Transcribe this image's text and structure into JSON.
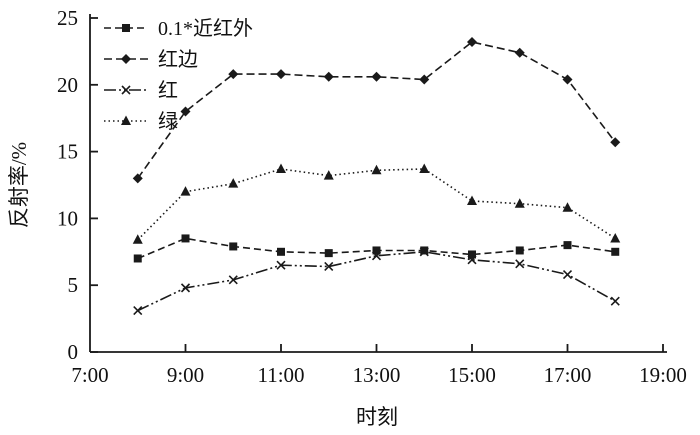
{
  "chart_data": {
    "type": "line",
    "title": "",
    "xlabel": "时刻",
    "ylabel": "反射率/%",
    "xlim_hours": [
      7,
      19
    ],
    "ylim": [
      0,
      25
    ],
    "x_tick_hours": [
      7,
      9,
      11,
      13,
      15,
      17,
      19
    ],
    "x_tick_labels": [
      "7:00",
      "9:00",
      "11:00",
      "13:00",
      "15:00",
      "17:00",
      "19:00"
    ],
    "y_ticks": [
      0,
      5,
      10,
      15,
      20,
      25
    ],
    "x_hours": [
      8,
      9,
      10,
      11,
      12,
      13,
      14,
      15,
      16,
      17,
      18
    ],
    "series": [
      {
        "key": "nir",
        "name": "0.1*近红外",
        "marker": "square",
        "dash": "7 4",
        "values": [
          7.0,
          8.5,
          7.9,
          7.5,
          7.4,
          7.6,
          7.6,
          7.3,
          7.6,
          8.0,
          7.5
        ]
      },
      {
        "key": "red-edge",
        "name": "红边",
        "marker": "diamond",
        "dash": "8 4",
        "values": [
          13.0,
          18.0,
          20.8,
          20.8,
          20.6,
          20.6,
          20.4,
          23.2,
          22.4,
          20.4,
          15.7
        ]
      },
      {
        "key": "red",
        "name": "红",
        "marker": "cross",
        "dash": "12 3 2 3 2 3",
        "values": [
          3.1,
          4.8,
          5.4,
          6.5,
          6.4,
          7.2,
          7.5,
          6.9,
          6.6,
          5.8,
          3.8
        ]
      },
      {
        "key": "green",
        "name": "绿",
        "marker": "triangle",
        "dash": "1.5 3",
        "values": [
          8.4,
          12.0,
          12.6,
          13.7,
          13.2,
          13.6,
          13.7,
          11.3,
          11.1,
          10.8,
          8.5
        ]
      }
    ],
    "line_color": "#1a1a1a",
    "grid": false,
    "legend_position": "top-left"
  }
}
